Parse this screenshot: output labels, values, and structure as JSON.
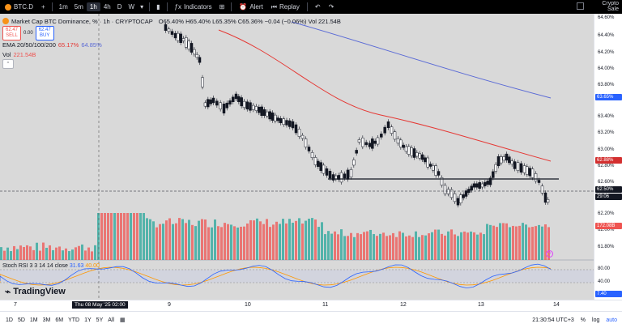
{
  "topbar": {
    "symbol": "BTC.D",
    "timeframes": [
      "1m",
      "5m",
      "1h",
      "4h",
      "D",
      "W"
    ],
    "active_timeframe": "1h",
    "indicators_label": "Indicators",
    "alert_label": "Alert",
    "replay_label": "Replay",
    "right_label_1": "Crypto",
    "right_label_2": "Sale"
  },
  "legend": {
    "title": "Market Cap BTC Dominance, % · 1h · CRYPTOCAP",
    "ohlc": "O65.40% H65.40% L65.35% C65.36% −0.04 (−0.06%) Vol 221.54B",
    "sell_price": "62.47",
    "sell_label": "SELL",
    "spread": "0.00",
    "buy_price": "62.47",
    "buy_label": "BUY",
    "ema_label": "EMA 20/50/100/200",
    "ema_val1": "65.17%",
    "ema_val2": "64.85%",
    "vol_label": "Vol",
    "vol_val": "221.54B"
  },
  "stoch": {
    "label": "Stoch RSI 3 3 14 14 close",
    "k": "31.63",
    "d": "40.00"
  },
  "brand": "TradingView",
  "yaxis": {
    "labels": [
      "64.60%",
      "64.40%",
      "64.20%",
      "64.00%",
      "63.80%",
      "63.40%",
      "63.20%",
      "63.00%",
      "62.80%",
      "62.60%",
      "62.20%",
      "62.00%",
      "61.80%",
      "80.00",
      "40.00"
    ],
    "tag_ema200": "63.65%",
    "tag_ema50": "62.88%",
    "tag_price": "62.50%",
    "tag_countdown": "29:06",
    "tag_vol": "172.08B",
    "tag_stoch": "7.40"
  },
  "xaxis": {
    "labels": [
      "7",
      "9",
      "10",
      "11",
      "12",
      "13",
      "14"
    ],
    "cursor": "Thu 08 May '25   02:00"
  },
  "bottombar": {
    "ranges": [
      "1D",
      "5D",
      "1M",
      "3M",
      "6M",
      "YTD",
      "1Y",
      "5Y",
      "All"
    ],
    "time": "21:30:54 UTC+3",
    "pct": "%",
    "log": "log",
    "auto": "auto"
  },
  "colors": {
    "up": "#26a69a",
    "down": "#ef5350",
    "ema50": "#e53935",
    "ema200": "#5b6bd6",
    "stoch_k": "#2962ff",
    "stoch_d": "#ff9800",
    "tag_blue": "#2962ff",
    "tag_red": "#d32f2f"
  }
}
